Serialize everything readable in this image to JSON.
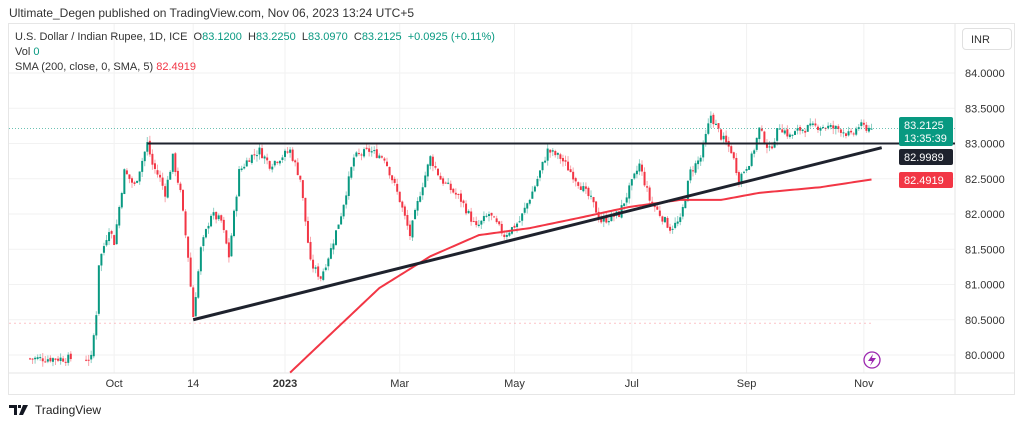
{
  "published": "Ultimate_Degen published on TradingView.com, Nov 06, 2023 13:24 UTC+5",
  "legend": {
    "symbol": "U.S. Dollar / Indian Rupee, 1D, ICE",
    "o_label": "O",
    "o": "83.1200",
    "h_label": "H",
    "h": "83.2250",
    "l_label": "L",
    "l": "83.0970",
    "c_label": "C",
    "c": "83.2125",
    "change": "+0.0925 (+0.11%)",
    "vol_label": "Vol",
    "vol": "0",
    "sma_label": "SMA (200, close, 0, SMA, 5)",
    "sma": "82.4919"
  },
  "currency": "INR",
  "logo": "TradingView",
  "colors": {
    "up": "#089981",
    "down": "#f23645",
    "sma": "#f23645",
    "line": "#1e222d"
  },
  "chart_data": {
    "type": "candlestick",
    "title": "U.S. Dollar / Indian Rupee, 1D, ICE",
    "ylim": [
      79.75,
      84.0
    ],
    "y_ticks": [
      "84.0000",
      "83.5000",
      "83.0000",
      "82.5000",
      "82.0000",
      "81.5000",
      "81.0000",
      "80.5000",
      "80.0000"
    ],
    "x_ticks": [
      {
        "label": "Oct",
        "i": 33
      },
      {
        "label": "14",
        "i": 64
      },
      {
        "label": "2023",
        "i": 100
      },
      {
        "label": "Mar",
        "i": 145
      },
      {
        "label": "May",
        "i": 190
      },
      {
        "label": "Jul",
        "i": 236
      },
      {
        "label": "Sep",
        "i": 281
      },
      {
        "label": "Nov",
        "i": 327
      }
    ],
    "close_path": [
      [
        0,
        79.95
      ],
      [
        24,
        79.95
      ],
      [
        26,
        80.6
      ],
      [
        27,
        81.3
      ],
      [
        31,
        81.8
      ],
      [
        33,
        81.6
      ],
      [
        37,
        82.6
      ],
      [
        41,
        82.4
      ],
      [
        46,
        83.0
      ],
      [
        48,
        82.7
      ],
      [
        51,
        82.5
      ],
      [
        53,
        82.3
      ],
      [
        56,
        82.8
      ],
      [
        59,
        82.3
      ],
      [
        62,
        81.4
      ],
      [
        64,
        80.55
      ],
      [
        67,
        81.5
      ],
      [
        71,
        82.0
      ],
      [
        75,
        81.9
      ],
      [
        78,
        81.4
      ],
      [
        82,
        82.6
      ],
      [
        86,
        82.8
      ],
      [
        90,
        82.9
      ],
      [
        94,
        82.7
      ],
      [
        102,
        82.9
      ],
      [
        106,
        82.5
      ],
      [
        110,
        81.3
      ],
      [
        114,
        81.1
      ],
      [
        118,
        81.5
      ],
      [
        122,
        82.0
      ],
      [
        127,
        82.8
      ],
      [
        133,
        82.9
      ],
      [
        139,
        82.8
      ],
      [
        145,
        82.2
      ],
      [
        149,
        81.7
      ],
      [
        153,
        82.3
      ],
      [
        157,
        82.8
      ],
      [
        161,
        82.5
      ],
      [
        169,
        82.2
      ],
      [
        175,
        81.8
      ],
      [
        180,
        82.0
      ],
      [
        186,
        81.7
      ],
      [
        192,
        81.9
      ],
      [
        198,
        82.4
      ],
      [
        203,
        82.9
      ],
      [
        208,
        82.8
      ],
      [
        214,
        82.5
      ],
      [
        220,
        82.2
      ],
      [
        224,
        81.9
      ],
      [
        231,
        82.0
      ],
      [
        239,
        82.7
      ],
      [
        243,
        82.2
      ],
      [
        247,
        82.0
      ],
      [
        251,
        81.8
      ],
      [
        255,
        81.9
      ],
      [
        259,
        82.6
      ],
      [
        263,
        82.8
      ],
      [
        267,
        83.4
      ],
      [
        271,
        83.1
      ],
      [
        275,
        82.9
      ],
      [
        278,
        82.5
      ],
      [
        283,
        82.8
      ],
      [
        286,
        83.2
      ],
      [
        290,
        82.9
      ],
      [
        294,
        83.25
      ],
      [
        298,
        83.1
      ],
      [
        302,
        83.2
      ],
      [
        310,
        83.25
      ],
      [
        318,
        83.2
      ],
      [
        322,
        83.1
      ],
      [
        325,
        83.25
      ],
      [
        330,
        83.21
      ]
    ],
    "sma_path": [
      [
        102,
        79.75
      ],
      [
        118,
        80.3
      ],
      [
        137,
        80.95
      ],
      [
        157,
        81.4
      ],
      [
        176,
        81.7
      ],
      [
        196,
        81.8
      ],
      [
        216,
        81.95
      ],
      [
        235,
        82.1
      ],
      [
        255,
        82.2
      ],
      [
        271,
        82.2
      ],
      [
        286,
        82.3
      ],
      [
        310,
        82.38
      ],
      [
        330,
        82.49
      ]
    ],
    "resistance": 83.0,
    "trendline": [
      [
        64,
        80.5
      ],
      [
        334,
        82.94
      ]
    ],
    "last_price": {
      "value": "83.2125",
      "countdown": "13:35:39"
    },
    "resistance_label": "82.9989",
    "sma_label": "82.4919",
    "low_marker": 80.45
  }
}
